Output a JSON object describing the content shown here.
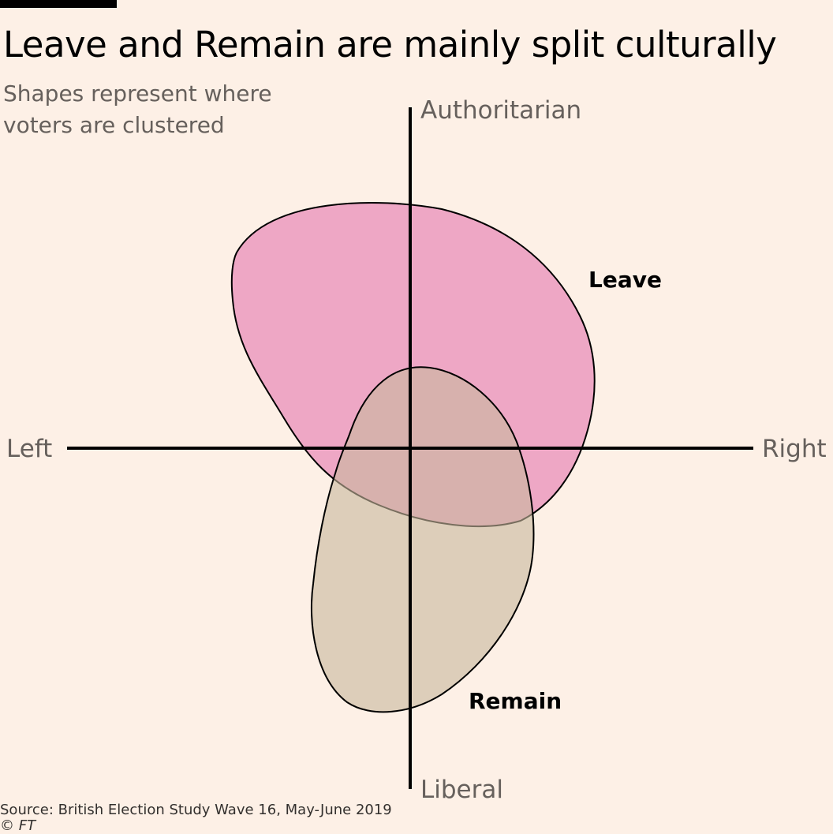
{
  "title": "Leave and Remain are mainly split culturally",
  "subtitle": "Shapes represent where voters are clustered",
  "source": "Source: British Election Study Wave 16, May-June 2019",
  "credit": "© FT",
  "chart_data": {
    "type": "area",
    "axes": {
      "x": {
        "negative_label": "Left",
        "positive_label": "Right"
      },
      "y": {
        "positive_label": "Authoritarian",
        "negative_label": "Liberal"
      }
    },
    "grid": false,
    "legend": "none",
    "series": [
      {
        "name": "Leave",
        "color": "#ec9fc1",
        "opacity": 0.9
      },
      {
        "name": "Remain",
        "color": "#c8b89c",
        "opacity": 0.6
      }
    ]
  }
}
